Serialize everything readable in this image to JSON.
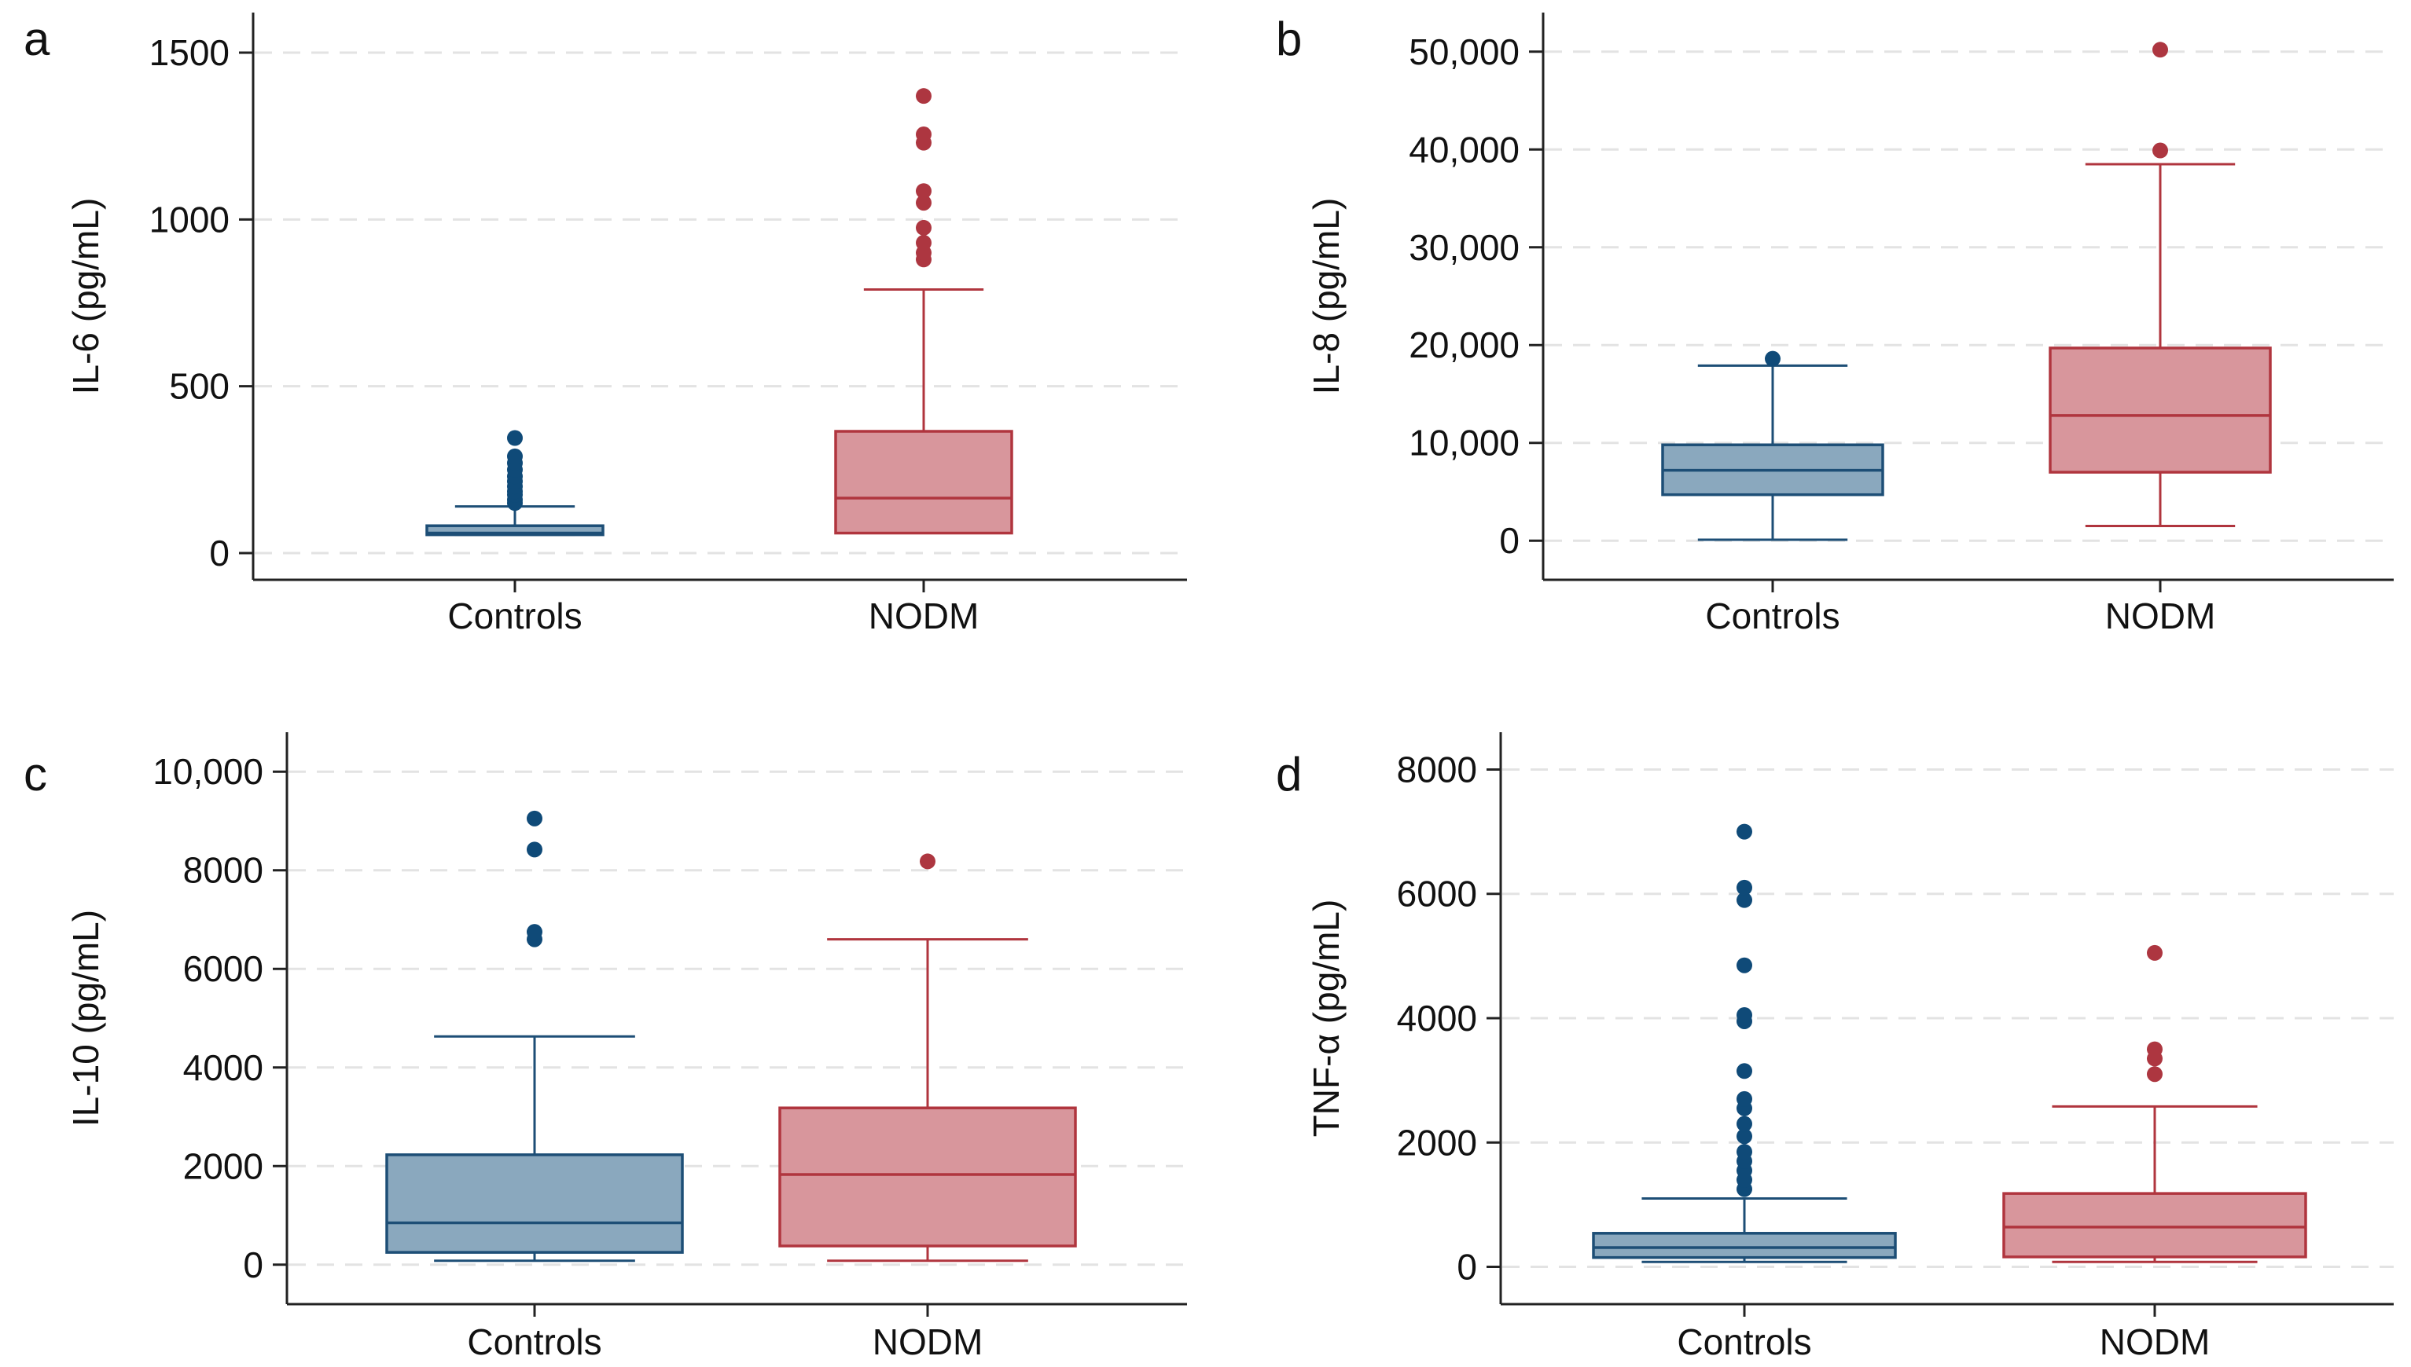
{
  "colors": {
    "controls_fill": "#8aa8be",
    "controls_stroke": "#1d4e76",
    "controls_point": "#0f4a78",
    "nodm_fill": "#d8969c",
    "nodm_stroke": "#b0353e",
    "nodm_point": "#ad3640",
    "grid": "#e3e3e3",
    "axis": "#222222"
  },
  "chart_data": [
    {
      "type": "box",
      "panel_label": "a",
      "ylabel": "IL-6 (pg/mL)",
      "ylim": [
        -80,
        1620
      ],
      "yticks": [
        0,
        500,
        1000,
        1500
      ],
      "ytick_labels": [
        "0",
        "500",
        "1000",
        "1500"
      ],
      "grid": true,
      "categories": [
        "Controls",
        "NODM"
      ],
      "boxes": [
        {
          "name": "Controls",
          "whisker_low": 55,
          "q1": 55,
          "median": 60,
          "q3": 82,
          "whisker_high": 140,
          "outliers": [
            150,
            160,
            175,
            185,
            200,
            215,
            230,
            250,
            270,
            290,
            345
          ]
        },
        {
          "name": "NODM",
          "whisker_low": 60,
          "q1": 60,
          "median": 165,
          "q3": 365,
          "whisker_high": 790,
          "outliers": [
            880,
            900,
            930,
            975,
            1050,
            1085,
            1230,
            1255,
            1370
          ]
        }
      ]
    },
    {
      "type": "box",
      "panel_label": "b",
      "ylabel": "IL-8 (pg/mL)",
      "ylim": [
        -4000,
        54000
      ],
      "yticks": [
        0,
        10000,
        20000,
        30000,
        40000,
        50000
      ],
      "ytick_labels": [
        "0",
        "10,000",
        "20,000",
        "30,000",
        "40,000",
        "50,000"
      ],
      "grid": true,
      "categories": [
        "Controls",
        "NODM"
      ],
      "boxes": [
        {
          "name": "Controls",
          "whisker_low": 100,
          "q1": 4700,
          "median": 7200,
          "q3": 9800,
          "whisker_high": 17900,
          "outliers": [
            18600
          ]
        },
        {
          "name": "NODM",
          "whisker_low": 1500,
          "q1": 7000,
          "median": 12800,
          "q3": 19700,
          "whisker_high": 38500,
          "outliers": [
            39900,
            50200
          ]
        }
      ]
    },
    {
      "type": "box",
      "panel_label": "c",
      "ylabel": "IL-10 (pg/mL)",
      "ylim": [
        -800,
        10800
      ],
      "yticks": [
        0,
        2000,
        4000,
        6000,
        8000,
        10000
      ],
      "ytick_labels": [
        "0",
        "2000",
        "4000",
        "6000",
        "8000",
        "10,000"
      ],
      "grid": true,
      "categories": [
        "Controls",
        "NODM"
      ],
      "boxes": [
        {
          "name": "Controls",
          "whisker_low": 80,
          "q1": 250,
          "median": 850,
          "q3": 2230,
          "whisker_high": 4630,
          "outliers": [
            6600,
            6750,
            8420,
            9050
          ]
        },
        {
          "name": "NODM",
          "whisker_low": 80,
          "q1": 380,
          "median": 1830,
          "q3": 3180,
          "whisker_high": 6600,
          "outliers": [
            8180
          ]
        }
      ]
    },
    {
      "type": "box",
      "panel_label": "d",
      "ylabel": "TNF-α (pg/mL)",
      "ylim": [
        -600,
        8600
      ],
      "yticks": [
        0,
        2000,
        4000,
        6000,
        8000
      ],
      "ytick_labels": [
        "0",
        "2000",
        "4000",
        "6000",
        "8000"
      ],
      "grid": true,
      "categories": [
        "Controls",
        "NODM"
      ],
      "boxes": [
        {
          "name": "Controls",
          "whisker_low": 80,
          "q1": 150,
          "median": 310,
          "q3": 540,
          "whisker_high": 1100,
          "outliers": [
            1250,
            1400,
            1550,
            1700,
            1850,
            2100,
            2300,
            2550,
            2700,
            3150,
            3950,
            4050,
            4850,
            5900,
            6100,
            7000
          ]
        },
        {
          "name": "NODM",
          "whisker_low": 80,
          "q1": 160,
          "median": 640,
          "q3": 1180,
          "whisker_high": 2580,
          "outliers": [
            3100,
            3350,
            3500,
            5050
          ]
        }
      ]
    }
  ]
}
